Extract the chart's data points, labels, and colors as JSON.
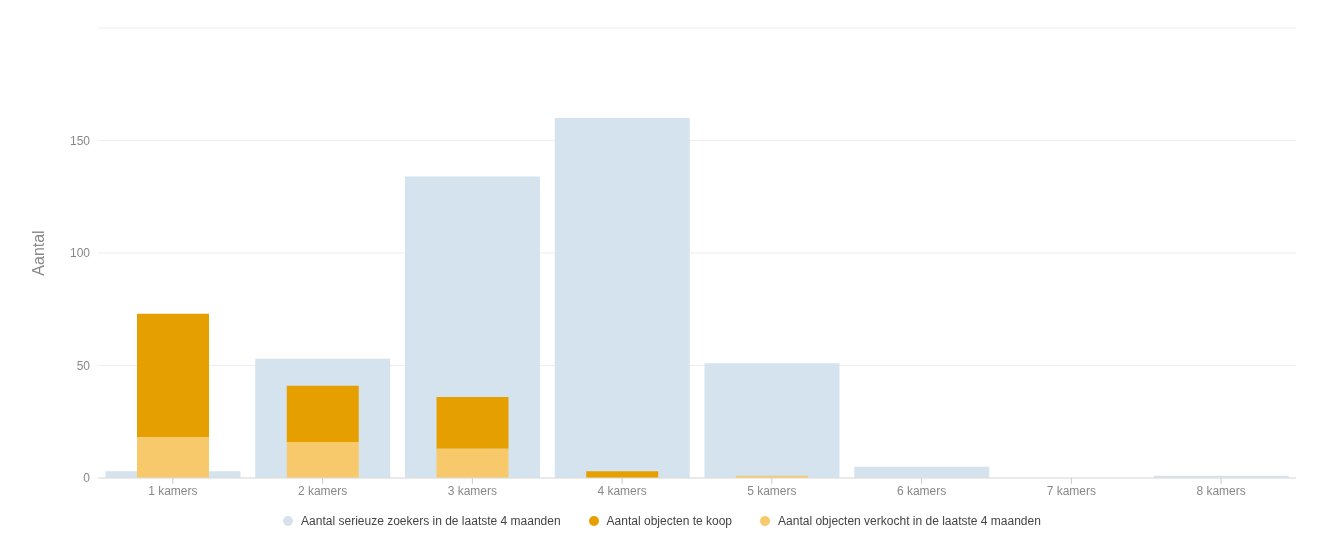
{
  "chart_data": {
    "type": "bar",
    "ylabel": "Aantal",
    "categories": [
      "1 kamers",
      "2 kamers",
      "3 kamers",
      "4 kamers",
      "5 kamers",
      "6 kamers",
      "7 kamers",
      "8 kamers"
    ],
    "series": [
      {
        "name": "Aantal serieuze zoekers in de laatste 4 maanden",
        "color": "#d5e3ef",
        "values": [
          3,
          53,
          134,
          160,
          51,
          5,
          0,
          1
        ]
      },
      {
        "name": "Aantal objecten te koop",
        "color": "#e5a000",
        "values": [
          55,
          25,
          23,
          3,
          0,
          0,
          0,
          0
        ],
        "base": [
          18,
          16,
          13,
          0,
          null,
          null,
          null,
          null
        ]
      },
      {
        "name": "Aantal objecten verkocht in de laatste 4 maanden",
        "color": "#f7c96a",
        "values": [
          18,
          16,
          13,
          0,
          1,
          0,
          0,
          0
        ]
      }
    ],
    "ylim": [
      0,
      200
    ],
    "yticks": [
      0,
      50,
      100,
      150
    ],
    "grid": "y",
    "legend": "bottom"
  }
}
